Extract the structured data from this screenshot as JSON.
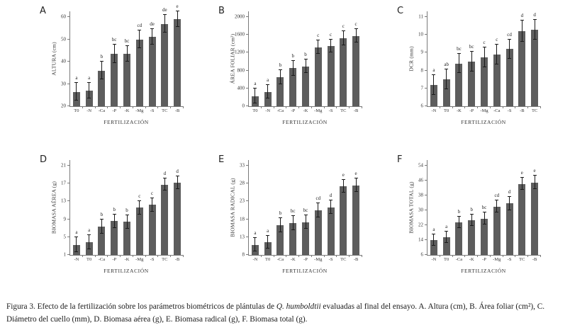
{
  "figure": {
    "caption_prefix": "Figura 3. Efecto de la fertilización sobre los parámetros biométricos de plántulas de ",
    "caption_italic": "Q. humboldtii",
    "caption_suffix": " evaluadas al final del ensayo. A. Altura (cm), B. Área foliar (cm²), C. Diámetro del cuello (mm), D. Biomasa aérea (g), E. Biomasa radical (g), F. Biomasa total (g)."
  },
  "colors": {
    "bar": "#5d5d5d",
    "error": "#1a1a1a",
    "axis": "#7a7a7a",
    "text": "#333333"
  },
  "chart_data": [
    {
      "panel_label": "A",
      "type": "bar",
      "grid": false,
      "legend": null,
      "ylabel": "ALTURA (cm)",
      "xlabel": "FERTILIZACIÓN",
      "ylim": [
        20,
        60
      ],
      "yticks": [
        20,
        30,
        40,
        50,
        60
      ],
      "categories": [
        "T0",
        "-N",
        "-Ca",
        "-P",
        "-K",
        "-Mg",
        "-S",
        "TC",
        "-B"
      ],
      "values": [
        26.5,
        27,
        36,
        43.5,
        43.5,
        50,
        51.2,
        57,
        59
      ],
      "errors": [
        4,
        3.5,
        4,
        4,
        3.5,
        4,
        3.5,
        4,
        3.5
      ],
      "sig_letters": [
        "a",
        "a",
        "b",
        "bc",
        "bc",
        "cd",
        "de",
        "de",
        "e"
      ]
    },
    {
      "panel_label": "B",
      "type": "bar",
      "grid": false,
      "legend": null,
      "ylabel": "ÁREA FOLIAR (cm²)",
      "xlabel": "FERTILIZACIÓN",
      "ylim": [
        0,
        2000
      ],
      "yticks": [
        0,
        400,
        800,
        1200,
        1600,
        2000
      ],
      "categories": [
        "T0",
        "-N",
        "-Ca",
        "-P",
        "-K",
        "-Mg",
        "-S",
        "TC",
        "-B"
      ],
      "values": [
        230,
        320,
        655,
        850,
        895,
        1325,
        1350,
        1520,
        1580
      ],
      "errors": [
        160,
        150,
        155,
        160,
        150,
        150,
        150,
        160,
        145
      ],
      "sig_letters": [
        "a",
        "a",
        "b",
        "b",
        "b",
        "c",
        "c",
        "c",
        "c"
      ]
    },
    {
      "panel_label": "C",
      "type": "bar",
      "grid": false,
      "legend": null,
      "ylabel": "DCR (mm)",
      "xlabel": "FERTILIZACIÓN",
      "ylim": [
        6,
        11
      ],
      "yticks": [
        6,
        7,
        8,
        9,
        10,
        11
      ],
      "categories": [
        "-N",
        "T0",
        "-K",
        "-P",
        "-Mg",
        "-Ca",
        "-S",
        "-B",
        "TC"
      ],
      "values": [
        7.2,
        7.5,
        8.4,
        8.5,
        8.75,
        8.9,
        9.2,
        10.2,
        10.3
      ],
      "errors": [
        0.55,
        0.55,
        0.55,
        0.55,
        0.55,
        0.55,
        0.55,
        0.6,
        0.55
      ],
      "sig_letters": [
        "a",
        "ab",
        "bc",
        "bc",
        "c",
        "c",
        "cd",
        "d",
        "d"
      ]
    },
    {
      "panel_label": "D",
      "type": "bar",
      "grid": false,
      "legend": null,
      "ylabel": "BIOMASA AÉREA (g)",
      "xlabel": "FERTILIZACIÓN",
      "ylim": [
        1,
        21
      ],
      "yticks": [
        1,
        5,
        9,
        13,
        17,
        21
      ],
      "categories": [
        "-N",
        "T0",
        "-Ca",
        "-P",
        "-K",
        "-Mg",
        "-S",
        "TC",
        "-B"
      ],
      "values": [
        3.3,
        3.9,
        7.3,
        8.6,
        8.4,
        11.6,
        12.2,
        16.8,
        17.2
      ],
      "errors": [
        1.6,
        1.6,
        1.6,
        1.5,
        1.5,
        1.5,
        1.5,
        1.4,
        1.4
      ],
      "sig_letters": [
        "a",
        "a",
        "b",
        "b",
        "b",
        "c",
        "c",
        "d",
        "d"
      ]
    },
    {
      "panel_label": "E",
      "type": "bar",
      "grid": false,
      "legend": null,
      "ylabel": "BIOMASA RADICAL (g)",
      "xlabel": "FERTILIZACIÓN",
      "ylim": [
        8,
        33
      ],
      "yticks": [
        8,
        13,
        18,
        23,
        28,
        33
      ],
      "categories": [
        "-N",
        "T0",
        "-Ca",
        "-K",
        "-P",
        "-Mg",
        "-S",
        "TC",
        "-B"
      ],
      "values": [
        10.8,
        11.5,
        16.3,
        16.9,
        17.2,
        20.5,
        21.4,
        27.3,
        27.5
      ],
      "errors": [
        1.9,
        1.8,
        2.0,
        2.0,
        1.9,
        2.0,
        1.8,
        1.8,
        1.9
      ],
      "sig_letters": [
        "a",
        "a",
        "b",
        "bc",
        "bc",
        "cd",
        "d",
        "e",
        "e"
      ]
    },
    {
      "panel_label": "F",
      "type": "bar",
      "grid": false,
      "legend": null,
      "ylabel": "BIOMASA TOTAL (g)",
      "xlabel": "FERTILIZACIÓN",
      "ylim": [
        6,
        54
      ],
      "yticks": [
        6,
        14,
        22,
        30,
        38,
        46,
        54
      ],
      "categories": [
        "-N",
        "T0",
        "-Ca",
        "-K",
        "-P",
        "-Mg",
        "-S",
        "TC",
        "-B"
      ],
      "values": [
        14,
        15.4,
        23.5,
        24.8,
        25.5,
        32,
        33.7,
        44.3,
        45
      ],
      "errors": [
        3,
        3,
        3.2,
        3,
        3.2,
        3.2,
        3.5,
        3.2,
        3.5
      ],
      "sig_letters": [
        "a",
        "a",
        "b",
        "b",
        "bc",
        "cd",
        "d",
        "e",
        "e"
      ]
    }
  ]
}
